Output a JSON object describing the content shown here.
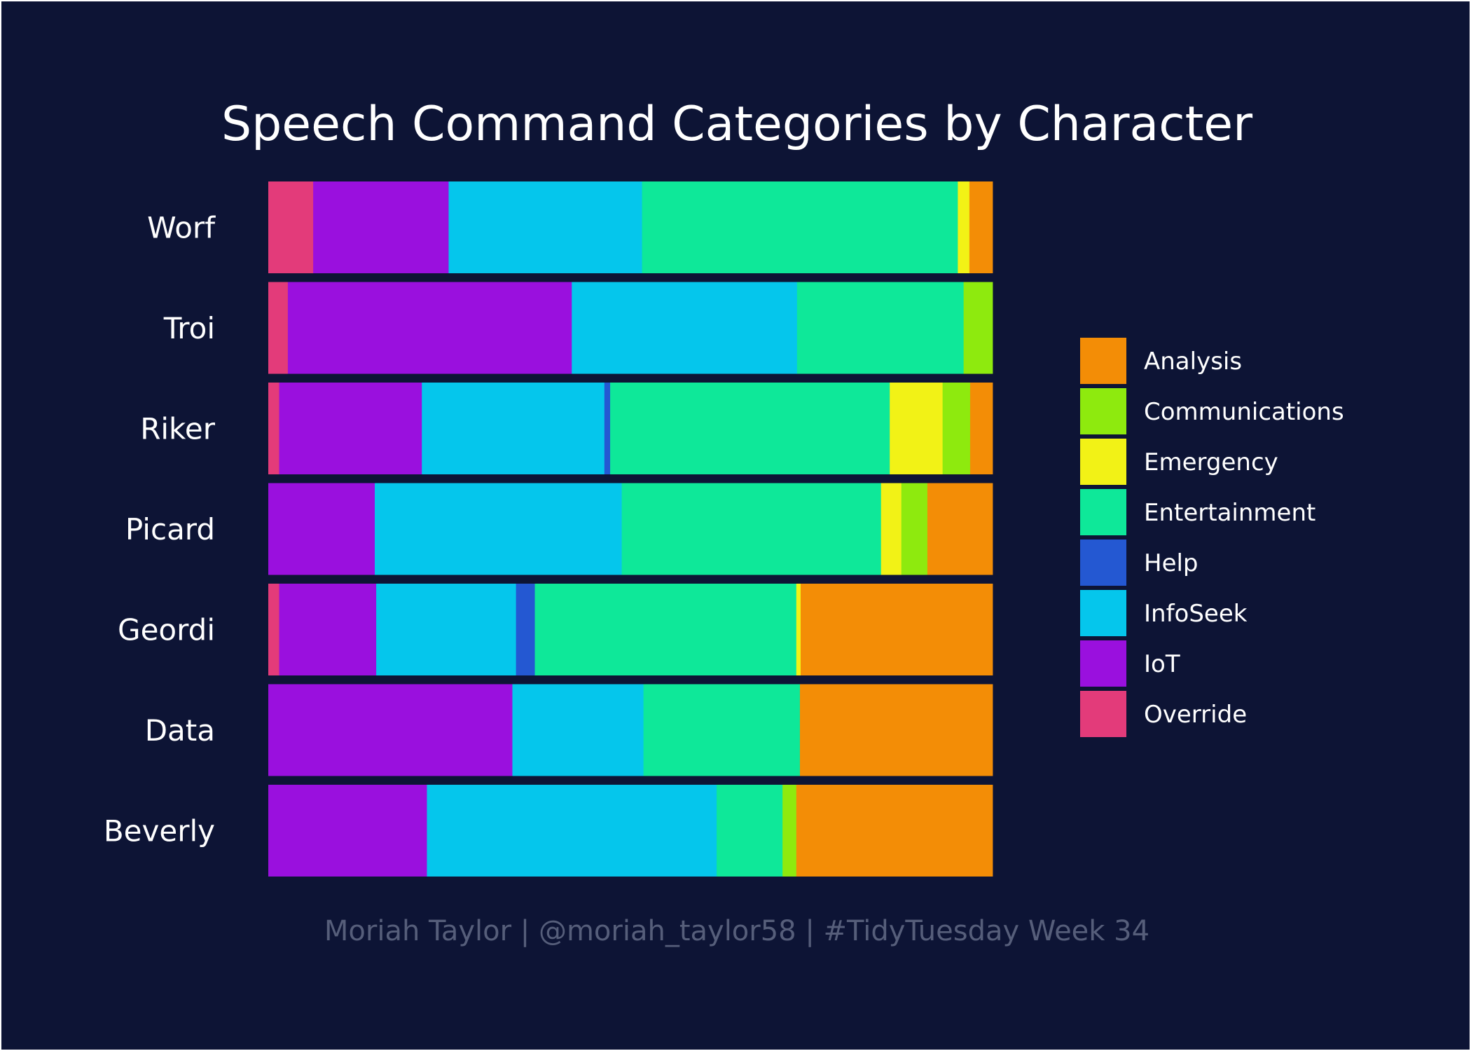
{
  "chart_data": {
    "type": "bar",
    "orientation": "horizontal",
    "stacked": "fill",
    "title": "Speech Command Categories by Character",
    "caption": "Moriah Taylor | @moriah_taylor58 | #TidyTuesday Week 34",
    "xlabel": "",
    "ylabel": "",
    "grid": false,
    "legend_position": "right",
    "categories": [
      "Worf",
      "Troi",
      "Riker",
      "Picard",
      "Geordi",
      "Data",
      "Beverly"
    ],
    "series": [
      {
        "name": "Override",
        "color": "#e33b7a",
        "values": [
          6.2,
          2.7,
          1.5,
          0.0,
          1.5,
          0.0,
          0.0
        ]
      },
      {
        "name": "IoT",
        "color": "#9a10de",
        "values": [
          18.7,
          39.2,
          19.7,
          14.7,
          13.4,
          33.7,
          21.9
        ]
      },
      {
        "name": "InfoSeek",
        "color": "#05c6ec",
        "values": [
          26.7,
          31.1,
          25.2,
          34.1,
          19.3,
          18.1,
          40.0
        ]
      },
      {
        "name": "Help",
        "color": "#2458d2",
        "values": [
          0.0,
          0.0,
          0.8,
          0.0,
          2.6,
          0.0,
          0.0
        ]
      },
      {
        "name": "Entertainment",
        "color": "#0ee899",
        "values": [
          43.6,
          23.0,
          38.6,
          35.8,
          36.1,
          21.6,
          9.1
        ]
      },
      {
        "name": "Emergency",
        "color": "#f2f216",
        "values": [
          1.6,
          0.0,
          7.3,
          2.8,
          0.6,
          0.0,
          0.0
        ]
      },
      {
        "name": "Communications",
        "color": "#8eea0e",
        "values": [
          0.0,
          4.0,
          3.8,
          3.6,
          0.0,
          0.0,
          1.9
        ]
      },
      {
        "name": "Analysis",
        "color": "#f38d06",
        "values": [
          3.2,
          0.0,
          3.1,
          9.0,
          26.5,
          26.6,
          27.1
        ]
      }
    ],
    "legend_order": [
      "Analysis",
      "Communications",
      "Emergency",
      "Entertainment",
      "Help",
      "InfoSeek",
      "IoT",
      "Override"
    ]
  }
}
